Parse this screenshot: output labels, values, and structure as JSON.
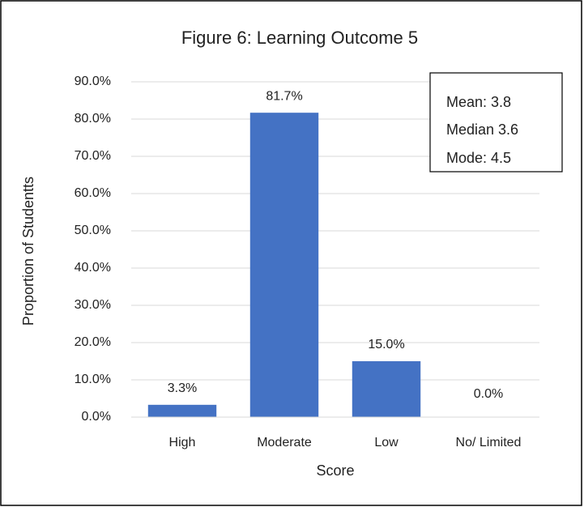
{
  "chart_data": {
    "type": "bar",
    "title": "Figure 6: Learning Outcome 5",
    "x_label": "Score",
    "y_label": "Proportion of Studentts",
    "categories": [
      "High",
      "Moderate",
      "Low",
      "No/ Limited"
    ],
    "values": [
      3.3,
      81.7,
      15.0,
      0.0
    ],
    "value_labels": [
      "3.3%",
      "81.7%",
      "15.0%",
      "0.0%"
    ],
    "color": "#4472c4",
    "ylim": [
      0,
      90
    ],
    "yticks": [
      {
        "value": 0,
        "label": "0.0%"
      },
      {
        "value": 10,
        "label": "10.0%"
      },
      {
        "value": 20,
        "label": "20.0%"
      },
      {
        "value": 30,
        "label": "30.0%"
      },
      {
        "value": 40,
        "label": "40.0%"
      },
      {
        "value": 50,
        "label": "50.0%"
      },
      {
        "value": 60,
        "label": "60.0%"
      },
      {
        "value": 70,
        "label": "70.0%"
      },
      {
        "value": 80,
        "label": "80.0%"
      },
      {
        "value": 90,
        "label": "90.0%"
      }
    ],
    "grid": true,
    "annotations": [
      "Mean: 3.8",
      "Median 3.6",
      "Mode: 4.5"
    ]
  }
}
